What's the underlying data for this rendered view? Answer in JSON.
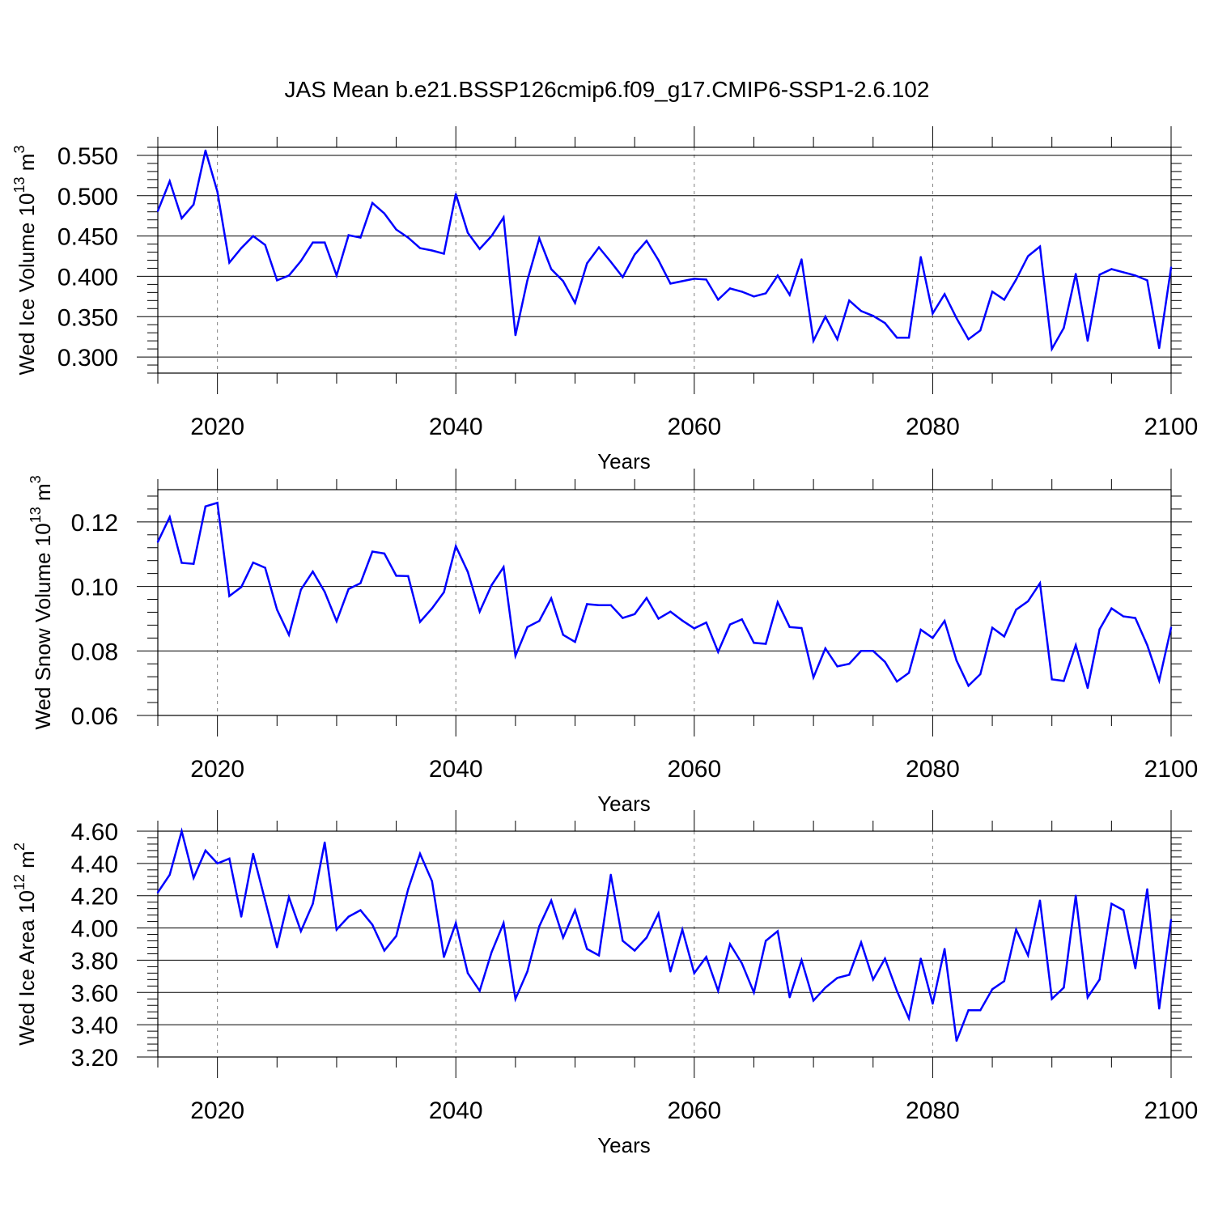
{
  "title": "JAS Mean b.e21.BSSP126cmip6.f09_g17.CMIP6-SSP1-2.6.102",
  "colors": {
    "line": "#0000ff",
    "axis": "#000000",
    "grid": "#808080"
  },
  "chart_data": [
    {
      "type": "line",
      "ylabel": "Wed Ice Volume 10",
      "ylabel_exp": "13",
      "ylabel_unit": " m",
      "ylabel_unit_exp": "3",
      "xlabel": "Years",
      "xlim": [
        2015,
        2100
      ],
      "ylim": [
        0.28,
        0.56
      ],
      "x_ticks": [
        "2020",
        "2040",
        "2060",
        "2080",
        "2100"
      ],
      "y_ticks": [
        "0.300",
        "0.350",
        "0.400",
        "0.450",
        "0.500",
        "0.550"
      ],
      "x": [
        2015,
        2016,
        2017,
        2018,
        2019,
        2020,
        2021,
        2022,
        2023,
        2024,
        2025,
        2026,
        2027,
        2028,
        2029,
        2030,
        2031,
        2032,
        2033,
        2034,
        2035,
        2036,
        2037,
        2038,
        2039,
        2040,
        2041,
        2042,
        2043,
        2044,
        2045,
        2046,
        2047,
        2048,
        2049,
        2050,
        2051,
        2052,
        2053,
        2054,
        2055,
        2056,
        2057,
        2058,
        2059,
        2060,
        2061,
        2062,
        2063,
        2064,
        2065,
        2066,
        2067,
        2068,
        2069,
        2070,
        2071,
        2072,
        2073,
        2074,
        2075,
        2076,
        2077,
        2078,
        2079,
        2080,
        2081,
        2082,
        2083,
        2084,
        2085,
        2086,
        2087,
        2088,
        2089,
        2090,
        2091,
        2092,
        2093,
        2094,
        2095,
        2096,
        2097,
        2098,
        2099,
        2100
      ],
      "values": [
        0.481,
        0.518,
        0.472,
        0.489,
        0.556,
        0.505,
        0.417,
        0.435,
        0.45,
        0.439,
        0.395,
        0.401,
        0.419,
        0.442,
        0.442,
        0.401,
        0.451,
        0.448,
        0.491,
        0.478,
        0.458,
        0.448,
        0.435,
        0.432,
        0.428,
        0.502,
        0.454,
        0.434,
        0.45,
        0.473,
        0.327,
        0.395,
        0.447,
        0.409,
        0.394,
        0.367,
        0.416,
        0.436,
        0.418,
        0.399,
        0.427,
        0.444,
        0.42,
        0.391,
        0.394,
        0.397,
        0.396,
        0.371,
        0.385,
        0.381,
        0.375,
        0.379,
        0.401,
        0.377,
        0.421,
        0.32,
        0.35,
        0.322,
        0.37,
        0.357,
        0.351,
        0.342,
        0.324,
        0.324,
        0.424,
        0.354,
        0.378,
        0.348,
        0.322,
        0.333,
        0.381,
        0.371,
        0.396,
        0.425,
        0.437,
        0.31,
        0.336,
        0.403,
        0.32,
        0.402,
        0.409,
        0.405,
        0.401,
        0.395,
        0.311,
        0.411
      ]
    },
    {
      "type": "line",
      "ylabel": "Wed Snow Volume 10",
      "ylabel_exp": "13",
      "ylabel_unit": " m",
      "ylabel_unit_exp": "3",
      "xlabel": "Years",
      "xlim": [
        2015,
        2100
      ],
      "ylim": [
        0.06,
        0.13
      ],
      "x_ticks": [
        "2020",
        "2040",
        "2060",
        "2080",
        "2100"
      ],
      "y_ticks": [
        "0.06",
        "0.08",
        "0.10",
        "0.12"
      ],
      "x": [
        2015,
        2016,
        2017,
        2018,
        2019,
        2020,
        2021,
        2022,
        2023,
        2024,
        2025,
        2026,
        2027,
        2028,
        2029,
        2030,
        2031,
        2032,
        2033,
        2034,
        2035,
        2036,
        2037,
        2038,
        2039,
        2040,
        2041,
        2042,
        2043,
        2044,
        2045,
        2046,
        2047,
        2048,
        2049,
        2050,
        2051,
        2052,
        2053,
        2054,
        2055,
        2056,
        2057,
        2058,
        2059,
        2060,
        2061,
        2062,
        2063,
        2064,
        2065,
        2066,
        2067,
        2068,
        2069,
        2070,
        2071,
        2072,
        2073,
        2074,
        2075,
        2076,
        2077,
        2078,
        2079,
        2080,
        2081,
        2082,
        2083,
        2084,
        2085,
        2086,
        2087,
        2088,
        2089,
        2090,
        2091,
        2092,
        2093,
        2094,
        2095,
        2096,
        2097,
        2098,
        2099,
        2100
      ],
      "values": [
        0.1138,
        0.1215,
        0.1073,
        0.107,
        0.1248,
        0.1259,
        0.097,
        0.0998,
        0.1074,
        0.1058,
        0.0928,
        0.085,
        0.099,
        0.1046,
        0.0983,
        0.0892,
        0.0992,
        0.101,
        0.1108,
        0.1102,
        0.1033,
        0.1032,
        0.089,
        0.0932,
        0.0982,
        0.1125,
        0.1045,
        0.0922,
        0.1004,
        0.106,
        0.0785,
        0.0874,
        0.0893,
        0.0963,
        0.085,
        0.0828,
        0.0945,
        0.0942,
        0.0942,
        0.0902,
        0.0914,
        0.0964,
        0.09,
        0.0922,
        0.0894,
        0.087,
        0.0888,
        0.0797,
        0.0882,
        0.0898,
        0.0825,
        0.0822,
        0.0951,
        0.0874,
        0.0871,
        0.0718,
        0.0808,
        0.0752,
        0.076,
        0.08,
        0.08,
        0.0766,
        0.0705,
        0.0732,
        0.0866,
        0.084,
        0.0893,
        0.077,
        0.0692,
        0.0728,
        0.0872,
        0.0845,
        0.0928,
        0.0954,
        0.101,
        0.0712,
        0.0707,
        0.0818,
        0.0685,
        0.0867,
        0.0932,
        0.0907,
        0.0902,
        0.0818,
        0.0708,
        0.0872
      ]
    },
    {
      "type": "line",
      "ylabel": "Wed Ice Area 10",
      "ylabel_exp": "12",
      "ylabel_unit": " m",
      "ylabel_unit_exp": "2",
      "xlabel": "Years",
      "xlim": [
        2015,
        2100
      ],
      "ylim": [
        3.2,
        4.6
      ],
      "x_ticks": [
        "2020",
        "2040",
        "2060",
        "2080",
        "2100"
      ],
      "y_ticks": [
        "3.20",
        "3.40",
        "3.60",
        "3.80",
        "4.00",
        "4.20",
        "4.40",
        "4.60"
      ],
      "x": [
        2015,
        2016,
        2017,
        2018,
        2019,
        2020,
        2021,
        2022,
        2023,
        2024,
        2025,
        2026,
        2027,
        2028,
        2029,
        2030,
        2031,
        2032,
        2033,
        2034,
        2035,
        2036,
        2037,
        2038,
        2039,
        2040,
        2041,
        2042,
        2043,
        2044,
        2045,
        2046,
        2047,
        2048,
        2049,
        2050,
        2051,
        2052,
        2053,
        2054,
        2055,
        2056,
        2057,
        2058,
        2059,
        2060,
        2061,
        2062,
        2063,
        2064,
        2065,
        2066,
        2067,
        2068,
        2069,
        2070,
        2071,
        2072,
        2073,
        2074,
        2075,
        2076,
        2077,
        2078,
        2079,
        2080,
        2081,
        2082,
        2083,
        2084,
        2085,
        2086,
        2087,
        2088,
        2089,
        2090,
        2091,
        2092,
        2093,
        2094,
        2095,
        2096,
        2097,
        2098,
        2099,
        2100
      ],
      "values": [
        4.22,
        4.33,
        4.6,
        4.31,
        4.48,
        4.4,
        4.43,
        4.07,
        4.46,
        4.17,
        3.88,
        4.19,
        3.98,
        4.15,
        4.53,
        3.99,
        4.07,
        4.11,
        4.02,
        3.86,
        3.95,
        4.24,
        4.46,
        4.29,
        3.82,
        4.03,
        3.72,
        3.61,
        3.85,
        4.03,
        3.56,
        3.73,
        4.01,
        4.17,
        3.94,
        4.11,
        3.87,
        3.83,
        4.33,
        3.92,
        3.86,
        3.94,
        4.09,
        3.73,
        3.99,
        3.72,
        3.82,
        3.61,
        3.9,
        3.78,
        3.6,
        3.92,
        3.98,
        3.57,
        3.8,
        3.55,
        3.63,
        3.69,
        3.71,
        3.91,
        3.68,
        3.81,
        3.61,
        3.44,
        3.81,
        3.53,
        3.87,
        3.3,
        3.49,
        3.49,
        3.62,
        3.67,
        3.99,
        3.83,
        4.17,
        3.56,
        3.63,
        4.2,
        3.57,
        3.68,
        4.15,
        4.11,
        3.75,
        4.24,
        3.5,
        4.05
      ]
    }
  ]
}
